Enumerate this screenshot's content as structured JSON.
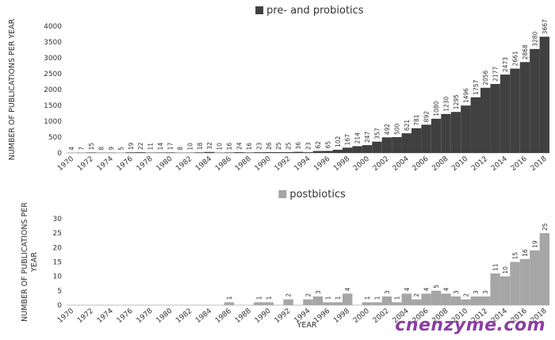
{
  "chart_data": [
    {
      "type": "bar",
      "series": [
        {
          "name": "pre- and probiotics",
          "color": "#404040",
          "values": [
            4,
            7,
            15,
            8,
            9,
            5,
            19,
            22,
            11,
            14,
            17,
            8,
            10,
            18,
            32,
            10,
            16,
            24,
            16,
            23,
            26,
            25,
            25,
            36,
            23,
            62,
            65,
            102,
            167,
            214,
            247,
            357,
            492,
            500,
            621,
            781,
            892,
            1080,
            1230,
            1295,
            1496,
            1757,
            2056,
            2177,
            2473,
            2661,
            2868,
            3280,
            3667
          ]
        }
      ],
      "x": [
        1970,
        1971,
        1972,
        1973,
        1974,
        1975,
        1976,
        1977,
        1978,
        1979,
        1980,
        1981,
        1982,
        1983,
        1984,
        1985,
        1986,
        1987,
        1988,
        1989,
        1990,
        1991,
        1992,
        1993,
        1994,
        1995,
        1996,
        1997,
        1998,
        1999,
        2000,
        2001,
        2002,
        2003,
        2004,
        2005,
        2006,
        2007,
        2008,
        2009,
        2010,
        2011,
        2012,
        2013,
        2014,
        2015,
        2016,
        2017,
        2018
      ],
      "x_tick_labels": [
        "1970",
        "1972",
        "1974",
        "1976",
        "1978",
        "1980",
        "1982",
        "1984",
        "1986",
        "1988",
        "1990",
        "1992",
        "1994",
        "1996",
        "1998",
        "2000",
        "2002",
        "2004",
        "2006",
        "2008",
        "2010",
        "2012",
        "2014",
        "2016",
        "2018"
      ],
      "ylabel": "NUMBER OF PUBLICATIONS PER YEAR",
      "ylim": [
        0,
        4000
      ],
      "y_ticks": [
        0,
        500,
        1000,
        1500,
        2000,
        2500,
        3000,
        3500,
        4000
      ],
      "legend": "top"
    },
    {
      "type": "bar",
      "series": [
        {
          "name": "postbiotics",
          "color": "#a6a6a6",
          "values": [
            0,
            0,
            0,
            0,
            0,
            0,
            0,
            0,
            0,
            0,
            0,
            0,
            0,
            0,
            0,
            0,
            1,
            0,
            0,
            1,
            1,
            0,
            2,
            0,
            2,
            3,
            1,
            1,
            4,
            0,
            1,
            1,
            3,
            1,
            4,
            2,
            4,
            5,
            4,
            3,
            2,
            3,
            3,
            11,
            10,
            15,
            16,
            19,
            25
          ],
          "labels": [
            "",
            "",
            "",
            "",
            "",
            "",
            "",
            "",
            "",
            "",
            "",
            "",
            "",
            "",
            "",
            "",
            "1",
            "",
            "",
            "1",
            "1",
            "",
            "2",
            "",
            "2",
            "3",
            "1",
            "1",
            "4",
            "",
            "1",
            "1",
            "3",
            "1",
            "4",
            "2",
            "4",
            "5",
            "4",
            "3",
            "2",
            "3",
            "3",
            "11",
            "10",
            "15",
            "16",
            "19",
            "25"
          ]
        }
      ],
      "x": [
        1970,
        1971,
        1972,
        1973,
        1974,
        1975,
        1976,
        1977,
        1978,
        1979,
        1980,
        1981,
        1982,
        1983,
        1984,
        1985,
        1986,
        1987,
        1988,
        1989,
        1990,
        1991,
        1992,
        1993,
        1994,
        1995,
        1996,
        1997,
        1998,
        1999,
        2000,
        2001,
        2002,
        2003,
        2004,
        2005,
        2006,
        2007,
        2008,
        2009,
        2010,
        2011,
        2012,
        2013,
        2014,
        2015,
        2016,
        2017,
        2018
      ],
      "x_tick_labels": [
        "1970",
        "1972",
        "1974",
        "1976",
        "1978",
        "1980",
        "1982",
        "1984",
        "1986",
        "1988",
        "1990",
        "1992",
        "1994",
        "1996",
        "1998",
        "2000",
        "2002",
        "2004",
        "2006",
        "2008",
        "2010",
        "2012",
        "2014",
        "2016",
        "2018"
      ],
      "xlabel": "YEAR",
      "ylabel": "NUMBER OF PUBLICATIONS PER YEAR",
      "ylim": [
        0,
        30
      ],
      "y_ticks": [
        0,
        5,
        10,
        15,
        20,
        25,
        30
      ],
      "legend": "top"
    }
  ],
  "watermark": "cnenzyme.com"
}
